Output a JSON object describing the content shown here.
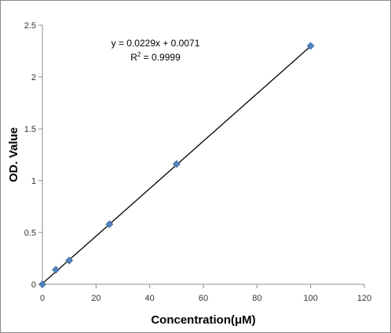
{
  "chart_data": {
    "type": "scatter",
    "xlabel": "Concentration(μM)",
    "ylabel": "OD. Value",
    "xlim": [
      0,
      120
    ],
    "ylim": [
      0,
      2.5
    ],
    "x_ticks": [
      "0",
      "20",
      "40",
      "60",
      "80",
      "100",
      "120"
    ],
    "y_ticks": [
      "0",
      "0.5",
      "1",
      "1.5",
      "2",
      "2.5"
    ],
    "grid": false,
    "legend": "none",
    "series": [
      {
        "x": [
          0,
          5,
          10,
          25,
          50,
          100
        ],
        "y": [
          0.0,
          0.14,
          0.23,
          0.58,
          1.16,
          2.3
        ],
        "color": "#4F81BD",
        "marker": "diamond"
      }
    ],
    "trendline": {
      "slope": 0.0229,
      "intercept": 0.0071,
      "x_range": [
        0,
        100
      ],
      "color": "#000000"
    },
    "annotations": {
      "equation": "y = 0.0229x + 0.0071",
      "r2_prefix": "R",
      "r2_sup": "2",
      "r2_suffix": " = 0.9999"
    }
  }
}
